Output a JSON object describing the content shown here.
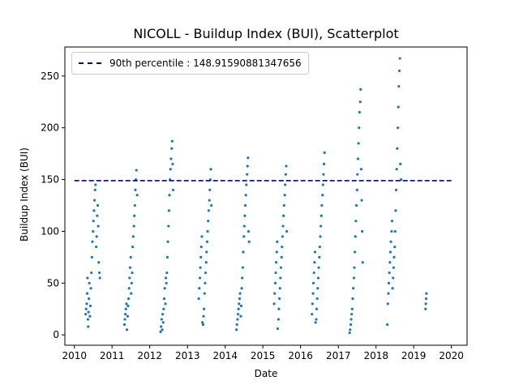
{
  "chart_data": {
    "type": "scatter",
    "title": "NICOLL - Buildup Index (BUI), Scatterplot",
    "xlabel": "Date",
    "ylabel": "Buildup Index (BUI)",
    "xlim": [
      "2009-10-01",
      "2020-06-01"
    ],
    "ylim": [
      -10,
      278
    ],
    "x_ticks": [
      "2010",
      "2011",
      "2012",
      "2013",
      "2014",
      "2015",
      "2016",
      "2017",
      "2018",
      "2019",
      "2020"
    ],
    "y_ticks": [
      0,
      50,
      100,
      150,
      200,
      250
    ],
    "grid": false,
    "legend_position": "top-left",
    "colors": {
      "points": "#1f77b4",
      "percentile_line": "#00008b"
    },
    "percentile_line": {
      "label": "90th percentile : 148.91590881347656",
      "y": 148.91590881347656,
      "x_start": "2010-01-01",
      "x_end": "2020-01-01",
      "style": "dashed"
    },
    "series": [
      {
        "points": [
          [
            "2010-04-20",
            20
          ],
          [
            "2010-04-25",
            25
          ],
          [
            "2010-05-01",
            30
          ],
          [
            "2010-05-05",
            40
          ],
          [
            "2010-05-08",
            55
          ],
          [
            "2010-05-12",
            15
          ],
          [
            "2010-05-15",
            8
          ],
          [
            "2010-05-18",
            22
          ],
          [
            "2010-05-22",
            35
          ],
          [
            "2010-05-26",
            50
          ],
          [
            "2010-06-01",
            18
          ],
          [
            "2010-06-05",
            28
          ],
          [
            "2010-06-10",
            45
          ],
          [
            "2010-06-15",
            60
          ],
          [
            "2010-06-20",
            75
          ],
          [
            "2010-06-25",
            90
          ],
          [
            "2010-07-01",
            100
          ],
          [
            "2010-07-05",
            110
          ],
          [
            "2010-07-10",
            120
          ],
          [
            "2010-07-15",
            130
          ],
          [
            "2010-07-20",
            140
          ],
          [
            "2010-07-25",
            145
          ],
          [
            "2010-08-01",
            85
          ],
          [
            "2010-08-05",
            95
          ],
          [
            "2010-08-10",
            115
          ],
          [
            "2010-08-15",
            125
          ],
          [
            "2010-08-20",
            105
          ],
          [
            "2010-08-25",
            70
          ],
          [
            "2010-09-01",
            60
          ],
          [
            "2010-09-05",
            55
          ],
          [
            "2011-05-01",
            10
          ],
          [
            "2011-05-05",
            15
          ],
          [
            "2011-05-10",
            20
          ],
          [
            "2011-05-15",
            25
          ],
          [
            "2011-05-20",
            30
          ],
          [
            "2011-05-25",
            5
          ],
          [
            "2011-06-01",
            18
          ],
          [
            "2011-06-05",
            28
          ],
          [
            "2011-06-10",
            35
          ],
          [
            "2011-06-15",
            45
          ],
          [
            "2011-06-20",
            55
          ],
          [
            "2011-06-25",
            65
          ],
          [
            "2011-07-01",
            75
          ],
          [
            "2011-07-05",
            40
          ],
          [
            "2011-07-10",
            50
          ],
          [
            "2011-07-15",
            60
          ],
          [
            "2011-07-20",
            85
          ],
          [
            "2011-07-25",
            95
          ],
          [
            "2011-08-01",
            105
          ],
          [
            "2011-08-05",
            115
          ],
          [
            "2011-08-10",
            125
          ],
          [
            "2011-08-15",
            140
          ],
          [
            "2011-08-20",
            150
          ],
          [
            "2011-08-25",
            159
          ],
          [
            "2011-09-01",
            135
          ],
          [
            "2012-04-15",
            3
          ],
          [
            "2012-04-20",
            8
          ],
          [
            "2012-04-25",
            15
          ],
          [
            "2012-05-01",
            5
          ],
          [
            "2012-05-05",
            20
          ],
          [
            "2012-05-10",
            12
          ],
          [
            "2012-05-15",
            25
          ],
          [
            "2012-05-20",
            35
          ],
          [
            "2012-05-25",
            45
          ],
          [
            "2012-06-01",
            30
          ],
          [
            "2012-06-05",
            55
          ],
          [
            "2012-06-10",
            50
          ],
          [
            "2012-06-15",
            60
          ],
          [
            "2012-06-20",
            75
          ],
          [
            "2012-06-25",
            90
          ],
          [
            "2012-07-01",
            105
          ],
          [
            "2012-07-05",
            120
          ],
          [
            "2012-07-10",
            135
          ],
          [
            "2012-07-15",
            150
          ],
          [
            "2012-07-20",
            160
          ],
          [
            "2012-07-25",
            170
          ],
          [
            "2012-08-01",
            180
          ],
          [
            "2012-08-05",
            187
          ],
          [
            "2012-08-10",
            165
          ],
          [
            "2012-08-15",
            140
          ],
          [
            "2013-04-20",
            35
          ],
          [
            "2013-04-25",
            45
          ],
          [
            "2013-05-01",
            55
          ],
          [
            "2013-05-05",
            65
          ],
          [
            "2013-05-10",
            75
          ],
          [
            "2013-05-15",
            85
          ],
          [
            "2013-05-20",
            95
          ],
          [
            "2013-05-25",
            12
          ],
          [
            "2013-06-01",
            10
          ],
          [
            "2013-06-05",
            18
          ],
          [
            "2013-06-10",
            25
          ],
          [
            "2013-06-15",
            40
          ],
          [
            "2013-06-20",
            50
          ],
          [
            "2013-06-25",
            60
          ],
          [
            "2013-07-01",
            70
          ],
          [
            "2013-07-05",
            80
          ],
          [
            "2013-07-10",
            90
          ],
          [
            "2013-07-15",
            100
          ],
          [
            "2013-07-20",
            110
          ],
          [
            "2013-07-25",
            120
          ],
          [
            "2013-08-01",
            130
          ],
          [
            "2013-08-05",
            140
          ],
          [
            "2013-08-10",
            150
          ],
          [
            "2013-08-15",
            160
          ],
          [
            "2013-08-20",
            125
          ],
          [
            "2014-04-20",
            5
          ],
          [
            "2014-04-25",
            10
          ],
          [
            "2014-05-01",
            15
          ],
          [
            "2014-05-05",
            20
          ],
          [
            "2014-05-10",
            25
          ],
          [
            "2014-05-15",
            30
          ],
          [
            "2014-05-20",
            35
          ],
          [
            "2014-05-25",
            40
          ],
          [
            "2014-06-01",
            18
          ],
          [
            "2014-06-05",
            28
          ],
          [
            "2014-06-10",
            45
          ],
          [
            "2014-06-15",
            55
          ],
          [
            "2014-06-20",
            65
          ],
          [
            "2014-06-25",
            80
          ],
          [
            "2014-07-01",
            95
          ],
          [
            "2014-07-05",
            105
          ],
          [
            "2014-07-10",
            115
          ],
          [
            "2014-07-15",
            125
          ],
          [
            "2014-07-20",
            135
          ],
          [
            "2014-07-25",
            145
          ],
          [
            "2014-08-01",
            155
          ],
          [
            "2014-08-05",
            163
          ],
          [
            "2014-08-10",
            171
          ],
          [
            "2014-08-15",
            100
          ],
          [
            "2014-08-20",
            90
          ],
          [
            "2015-04-20",
            30
          ],
          [
            "2015-04-25",
            40
          ],
          [
            "2015-05-01",
            50
          ],
          [
            "2015-05-05",
            60
          ],
          [
            "2015-05-10",
            70
          ],
          [
            "2015-05-15",
            80
          ],
          [
            "2015-05-20",
            90
          ],
          [
            "2015-05-25",
            6
          ],
          [
            "2015-06-01",
            15
          ],
          [
            "2015-06-05",
            25
          ],
          [
            "2015-06-10",
            35
          ],
          [
            "2015-06-15",
            45
          ],
          [
            "2015-06-20",
            55
          ],
          [
            "2015-06-25",
            65
          ],
          [
            "2015-07-01",
            75
          ],
          [
            "2015-07-05",
            85
          ],
          [
            "2015-07-10",
            95
          ],
          [
            "2015-07-15",
            105
          ],
          [
            "2015-07-20",
            115
          ],
          [
            "2015-07-25",
            125
          ],
          [
            "2015-08-01",
            135
          ],
          [
            "2015-08-05",
            145
          ],
          [
            "2015-08-10",
            155
          ],
          [
            "2015-08-15",
            163
          ],
          [
            "2015-08-20",
            100
          ],
          [
            "2016-04-20",
            20
          ],
          [
            "2016-04-25",
            30
          ],
          [
            "2016-05-01",
            40
          ],
          [
            "2016-05-05",
            50
          ],
          [
            "2016-05-10",
            60
          ],
          [
            "2016-05-15",
            70
          ],
          [
            "2016-05-20",
            80
          ],
          [
            "2016-05-25",
            12
          ],
          [
            "2016-06-01",
            15
          ],
          [
            "2016-06-05",
            25
          ],
          [
            "2016-06-10",
            35
          ],
          [
            "2016-06-15",
            45
          ],
          [
            "2016-06-20",
            55
          ],
          [
            "2016-06-25",
            65
          ],
          [
            "2016-07-01",
            75
          ],
          [
            "2016-07-05",
            85
          ],
          [
            "2016-07-10",
            95
          ],
          [
            "2016-07-15",
            105
          ],
          [
            "2016-07-20",
            115
          ],
          [
            "2016-07-25",
            125
          ],
          [
            "2016-08-01",
            135
          ],
          [
            "2016-08-05",
            145
          ],
          [
            "2016-08-10",
            155
          ],
          [
            "2016-08-15",
            165
          ],
          [
            "2016-08-20",
            176
          ],
          [
            "2017-04-20",
            2
          ],
          [
            "2017-04-25",
            5
          ],
          [
            "2017-05-01",
            10
          ],
          [
            "2017-05-05",
            15
          ],
          [
            "2017-05-10",
            20
          ],
          [
            "2017-05-15",
            25
          ],
          [
            "2017-05-20",
            35
          ],
          [
            "2017-05-25",
            45
          ],
          [
            "2017-06-01",
            55
          ],
          [
            "2017-06-05",
            65
          ],
          [
            "2017-06-10",
            80
          ],
          [
            "2017-06-15",
            95
          ],
          [
            "2017-06-20",
            110
          ],
          [
            "2017-06-25",
            125
          ],
          [
            "2017-07-01",
            140
          ],
          [
            "2017-07-05",
            155
          ],
          [
            "2017-07-10",
            170
          ],
          [
            "2017-07-15",
            185
          ],
          [
            "2017-07-20",
            200
          ],
          [
            "2017-07-25",
            215
          ],
          [
            "2017-08-01",
            225
          ],
          [
            "2017-08-05",
            237
          ],
          [
            "2017-08-10",
            160
          ],
          [
            "2017-08-15",
            130
          ],
          [
            "2017-08-20",
            100
          ],
          [
            "2017-08-25",
            70
          ],
          [
            "2018-04-20",
            10
          ],
          [
            "2018-04-25",
            30
          ],
          [
            "2018-05-01",
            40
          ],
          [
            "2018-05-05",
            50
          ],
          [
            "2018-05-10",
            60
          ],
          [
            "2018-05-15",
            70
          ],
          [
            "2018-05-20",
            80
          ],
          [
            "2018-05-25",
            90
          ],
          [
            "2018-06-01",
            100
          ],
          [
            "2018-06-05",
            110
          ],
          [
            "2018-06-10",
            45
          ],
          [
            "2018-06-15",
            55
          ],
          [
            "2018-06-20",
            65
          ],
          [
            "2018-06-25",
            75
          ],
          [
            "2018-07-01",
            85
          ],
          [
            "2018-07-05",
            100
          ],
          [
            "2018-07-10",
            120
          ],
          [
            "2018-07-15",
            140
          ],
          [
            "2018-07-20",
            160
          ],
          [
            "2018-07-25",
            180
          ],
          [
            "2018-08-01",
            200
          ],
          [
            "2018-08-05",
            220
          ],
          [
            "2018-08-10",
            240
          ],
          [
            "2018-08-15",
            255
          ],
          [
            "2018-08-20",
            267
          ],
          [
            "2018-08-25",
            165
          ],
          [
            "2018-09-01",
            150
          ],
          [
            "2019-04-25",
            25
          ],
          [
            "2019-04-28",
            30
          ],
          [
            "2019-05-01",
            35
          ],
          [
            "2019-05-04",
            40
          ]
        ]
      }
    ]
  }
}
